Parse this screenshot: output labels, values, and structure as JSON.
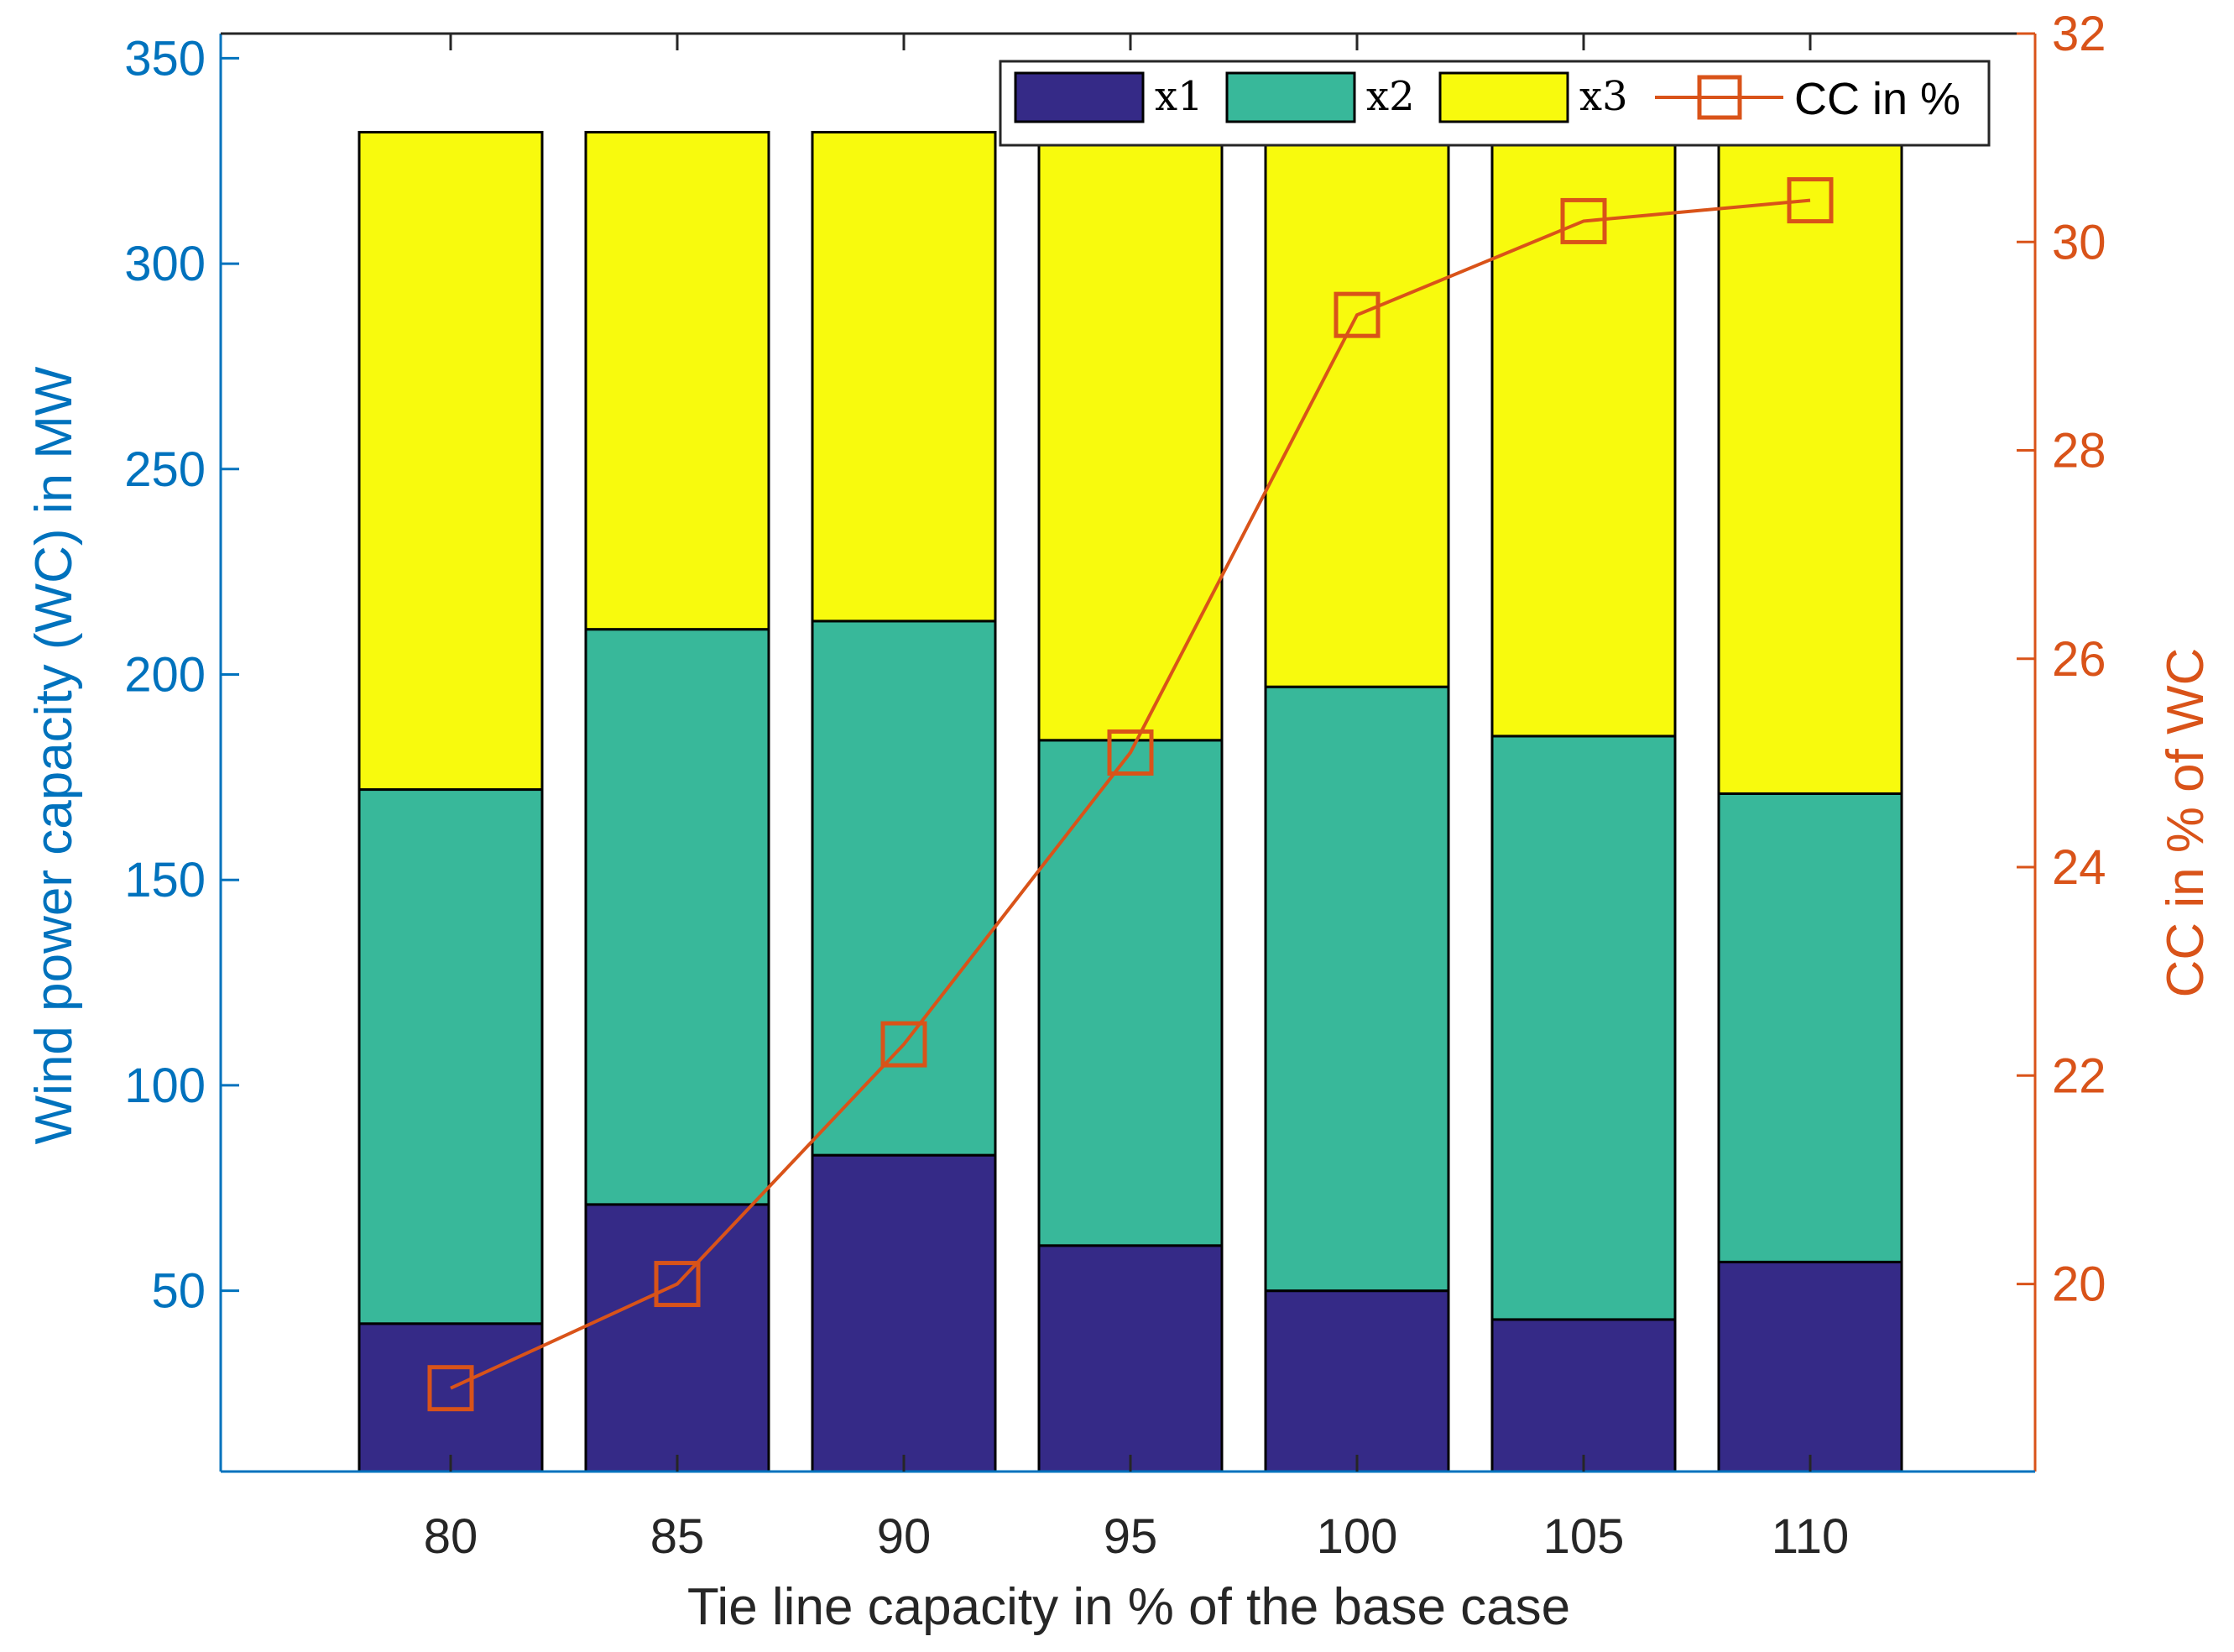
{
  "chart_data": {
    "type": "bar",
    "subtype": "stacked-bar-with-line-secondary-axis",
    "categories": [
      "80",
      "85",
      "90",
      "95",
      "100",
      "105",
      "110"
    ],
    "series": [
      {
        "name": "x1",
        "values": [
          36,
          65,
          77,
          55,
          44,
          37,
          51
        ],
        "color": "#352A87"
      },
      {
        "name": "x2",
        "values": [
          130,
          140,
          130,
          123,
          147,
          142,
          114
        ],
        "color": "#38B89A"
      },
      {
        "name": "x3",
        "values": [
          160,
          121,
          119,
          148,
          135,
          147,
          161
        ],
        "color": "#F8FA0D"
      }
    ],
    "line_series": {
      "name": "CC in %",
      "axis": "right",
      "values": [
        19.0,
        20.0,
        22.3,
        25.1,
        29.3,
        30.2,
        30.4
      ],
      "color": "#D95319"
    },
    "xlabel": "Tie line capacity in % of the base case",
    "ylabel_left": "Wind power capacity (WC) in MW",
    "ylabel_right": "CC in % of WC",
    "ylim_left": [
      6,
      356
    ],
    "yticks_left": [
      "50",
      "100",
      "150",
      "200",
      "250",
      "300",
      "350"
    ],
    "ylim_right": [
      18.2,
      32
    ],
    "yticks_right": [
      "20",
      "22",
      "24",
      "26",
      "28",
      "30",
      "32"
    ],
    "left_axis_color": "#0072BD",
    "right_axis_color": "#D95319",
    "legend": {
      "location": "top-right",
      "entries": [
        "x1",
        "x2",
        "x3",
        "CC in %"
      ]
    }
  }
}
